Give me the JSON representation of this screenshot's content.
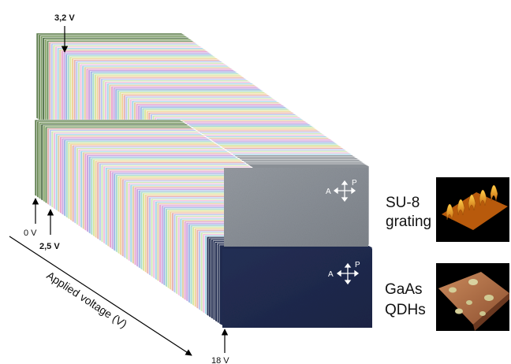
{
  "labels": {
    "v_top": "3,2 V",
    "v_zero": "0 V",
    "v_mid": "2,5 V",
    "v_end": "18 V",
    "axis": "Applied voltage (V)"
  },
  "samples": {
    "top": {
      "line1": "SU-8",
      "line2": "grating"
    },
    "bottom": {
      "line1": "GaAs",
      "line2": "QDHs"
    }
  },
  "polarizer": {
    "analyzer": "A",
    "polarizer": "P"
  },
  "stacks": {
    "top_frames": 90,
    "bottom_frames": 90,
    "top_front_color": "#8a8f95",
    "bottom_front_color": "#1f2a4e"
  }
}
